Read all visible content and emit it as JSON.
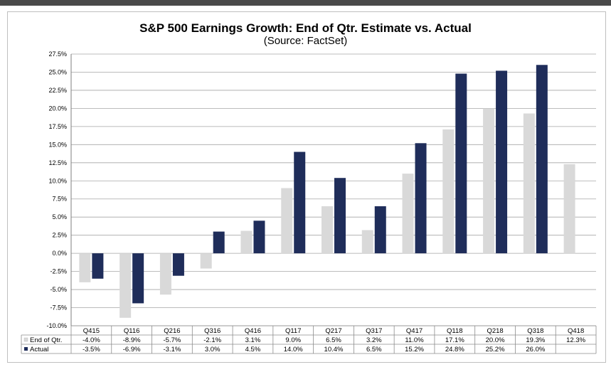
{
  "chart_data": {
    "type": "bar",
    "title": "S&P 500 Earnings Growth: End of Qtr. Estimate vs. Actual",
    "subtitle": "(Source: FactSet)",
    "categories": [
      "Q415",
      "Q116",
      "Q216",
      "Q316",
      "Q416",
      "Q117",
      "Q217",
      "Q317",
      "Q417",
      "Q118",
      "Q218",
      "Q318",
      "Q418"
    ],
    "series": [
      {
        "name": "End of Qtr.",
        "color": "#d9d9d9",
        "values": [
          -4.0,
          -8.9,
          -5.7,
          -2.1,
          3.1,
          9.0,
          6.5,
          3.2,
          11.0,
          17.1,
          20.0,
          19.3,
          12.3
        ],
        "labels": [
          "-4.0%",
          "-8.9%",
          "-5.7%",
          "-2.1%",
          "3.1%",
          "9.0%",
          "6.5%",
          "3.2%",
          "11.0%",
          "17.1%",
          "20.0%",
          "19.3%",
          "12.3%"
        ]
      },
      {
        "name": "Actual",
        "color": "#1f2d5a",
        "values": [
          -3.5,
          -6.9,
          -3.1,
          3.0,
          4.5,
          14.0,
          10.4,
          6.5,
          15.2,
          24.8,
          25.2,
          26.0,
          null
        ],
        "labels": [
          "-3.5%",
          "-6.9%",
          "-3.1%",
          "3.0%",
          "4.5%",
          "14.0%",
          "10.4%",
          "6.5%",
          "15.2%",
          "24.8%",
          "25.2%",
          "26.0%",
          ""
        ]
      }
    ],
    "ylim": [
      -10.0,
      27.5
    ],
    "yticks": [
      27.5,
      25.0,
      22.5,
      20.0,
      17.5,
      15.0,
      12.5,
      10.0,
      7.5,
      5.0,
      2.5,
      0.0,
      -2.5,
      -5.0,
      -7.5,
      -10.0
    ],
    "ytick_labels": [
      "27.5%",
      "25.0%",
      "22.5%",
      "20.0%",
      "17.5%",
      "15.0%",
      "12.5%",
      "10.0%",
      "7.5%",
      "5.0%",
      "2.5%",
      "0.0%",
      "-2.5%",
      "-5.0%",
      "-7.5%",
      "-10.0%"
    ],
    "grid": true,
    "legend": "data-table"
  }
}
